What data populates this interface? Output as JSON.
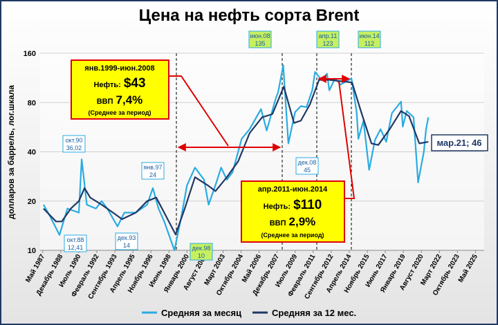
{
  "chart_data": {
    "type": "line",
    "title": "Цена на нефть сорта Brent",
    "y_label": "долларов за баррель, лог.шкала",
    "log_y": true,
    "grid": true,
    "ylim": [
      10,
      160
    ],
    "yticks": [
      10,
      20,
      40,
      80,
      160
    ],
    "xlim": [
      1987.1,
      2026.1
    ],
    "xticks": [
      {
        "value": 1987.333,
        "label": "Май 1987"
      },
      {
        "value": 1988.917,
        "label": "Декабрь 1988"
      },
      {
        "value": 1990.5,
        "label": "Июль 1990"
      },
      {
        "value": 1992.083,
        "label": "Февраль 1992"
      },
      {
        "value": 1993.667,
        "label": "Сентябрь 1993"
      },
      {
        "value": 1995.25,
        "label": "Апрель 1995"
      },
      {
        "value": 1996.833,
        "label": "Ноябрь 1996"
      },
      {
        "value": 1998.417,
        "label": "Июнь 1998"
      },
      {
        "value": 2000.0,
        "label": "Январь 2000"
      },
      {
        "value": 2001.583,
        "label": "Август 2001"
      },
      {
        "value": 2003.167,
        "label": "Март 2003"
      },
      {
        "value": 2004.75,
        "label": "Октябрь 2004"
      },
      {
        "value": 2006.333,
        "label": "Май 2006"
      },
      {
        "value": 2007.917,
        "label": "Декабрь 2007"
      },
      {
        "value": 2009.5,
        "label": "Июль 2009"
      },
      {
        "value": 2011.083,
        "label": "Февраль 2011"
      },
      {
        "value": 2012.667,
        "label": "Сентябрь 2012"
      },
      {
        "value": 2014.25,
        "label": "Апрель 2014"
      },
      {
        "value": 2015.833,
        "label": "Ноябрь 2015"
      },
      {
        "value": 2017.417,
        "label": "Июнь 2017"
      },
      {
        "value": 2019.0,
        "label": "Январь 2019"
      },
      {
        "value": 2020.583,
        "label": "Август 2020"
      },
      {
        "value": 2022.167,
        "label": "Март 2022"
      },
      {
        "value": 2023.75,
        "label": "Октябрь 2023"
      },
      {
        "value": 2025.333,
        "label": "Май 2025"
      }
    ],
    "series": [
      {
        "name": "Средняя за месяц",
        "color": "#29abe2",
        "x": [
          1987.4,
          1988.0,
          1988.8,
          1989.5,
          1990.5,
          1990.75,
          1991.2,
          1992.0,
          1992.5,
          1993.0,
          1993.9,
          1994.5,
          1995.5,
          1996.5,
          1997.0,
          1997.5,
          1998.0,
          1998.9,
          1999.5,
          2000.0,
          2000.7,
          2001.5,
          2001.9,
          2002.5,
          2003.0,
          2003.5,
          2004.0,
          2004.8,
          2005.5,
          2006.5,
          2007.0,
          2007.8,
          2008.0,
          2008.45,
          2008.9,
          2009.5,
          2010.0,
          2010.5,
          2011.0,
          2011.25,
          2011.8,
          2012.3,
          2012.5,
          2013.0,
          2013.5,
          2014.0,
          2014.45,
          2014.9,
          2015.05,
          2015.5,
          2016.0,
          2016.5,
          2017.0,
          2017.5,
          2018.0,
          2018.8,
          2018.95,
          2019.3,
          2019.9,
          2020.3,
          2020.8,
          2021.0,
          2021.2
        ],
        "values": [
          19,
          16,
          12.41,
          18,
          17,
          36.02,
          19,
          18,
          20,
          18,
          14,
          17,
          17,
          19,
          24,
          18,
          15,
          10,
          16,
          25,
          32,
          27,
          19,
          25,
          32,
          27,
          30,
          48,
          55,
          73,
          54,
          85,
          92,
          135,
          45,
          70,
          76,
          75,
          95,
          123,
          110,
          120,
          95,
          112,
          103,
          108,
          112,
          70,
          48,
          62,
          31,
          47,
          55,
          46,
          69,
          81,
          57,
          71,
          65,
          26,
          40,
          55,
          65
        ]
      },
      {
        "name": "Средняя за 12 мес.",
        "color": "#1f3864",
        "x": [
          1987.4,
          1988.5,
          1989.0,
          1989.8,
          1990.5,
          1991.0,
          1991.5,
          1992.5,
          1993.5,
          1994.3,
          1995.5,
          1996.5,
          1997.3,
          1998.0,
          1999.0,
          1999.8,
          2000.7,
          2001.8,
          2002.5,
          2003.5,
          2004.5,
          2005.5,
          2006.6,
          2007.5,
          2008.5,
          2009.4,
          2010.0,
          2010.8,
          2011.6,
          2012.5,
          2013.5,
          2014.5,
          2015.3,
          2016.2,
          2016.8,
          2017.8,
          2018.8,
          2019.5,
          2020.4,
          2021.2
        ],
        "values": [
          18,
          15,
          15,
          18,
          20,
          24,
          21,
          19,
          17,
          15.5,
          17,
          20,
          21,
          17,
          12.5,
          18,
          28,
          25,
          23,
          28,
          35,
          52,
          65,
          68,
          100,
          60,
          62,
          78,
          110,
          110,
          108,
          106,
          70,
          45,
          44,
          55,
          71,
          66,
          45,
          46
        ]
      }
    ],
    "annotations": [
      {
        "lines": [
          "окт.90",
          "36,02"
        ]
      },
      {
        "lines": [
          "окт.88",
          "12,41"
        ]
      },
      {
        "lines": [
          "дек.93",
          "14"
        ]
      },
      {
        "lines": [
          "янв.97",
          "24"
        ]
      },
      {
        "lines": [
          "дек.98",
          "10"
        ]
      },
      {
        "lines": [
          "июн.08",
          "135"
        ]
      },
      {
        "lines": [
          "апр.11",
          "123"
        ]
      },
      {
        "lines": [
          "июн.14",
          "112"
        ]
      },
      {
        "lines": [
          "дек.08",
          "45"
        ]
      }
    ],
    "periods": [
      {
        "period": "янв.1999-июн.2008",
        "oil_label": "Нефть:",
        "oil": "$43",
        "gdp_label": "ВВП",
        "gdp": "7,4%",
        "note": "(Среднее за период)"
      },
      {
        "period": "апр.2011-июн.2014",
        "oil_label": "Нефть:",
        "oil": "$110",
        "gdp_label": "ВВП",
        "gdp": "2,9%",
        "note": "(Среднее за период)"
      }
    ],
    "last_label": "мар.21; 46"
  }
}
